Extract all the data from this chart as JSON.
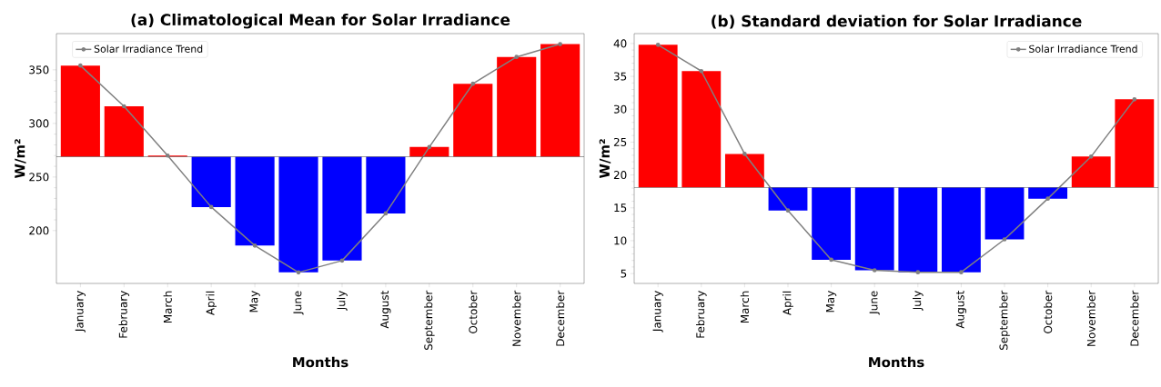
{
  "chart_data": [
    {
      "type": "bar",
      "title": "(a) Climatological Mean for Solar Irradiance",
      "xlabel": "Months",
      "ylabel": "W/m²",
      "categories": [
        "January",
        "February",
        "March",
        "April",
        "May",
        "June",
        "July",
        "August",
        "September",
        "October",
        "November",
        "December"
      ],
      "series": [
        {
          "base": [
            269,
            269,
            269,
            269,
            269,
            269,
            269,
            269,
            269,
            269,
            269,
            269
          ],
          "values": [
            85,
            47,
            1,
            -47,
            -83,
            -108,
            -97,
            -53,
            9,
            68,
            93,
            105
          ],
          "colors": [
            "#ff0000",
            "#ff0000",
            "#ff0000",
            "#0000ff",
            "#0000ff",
            "#0000ff",
            "#0000ff",
            "#0000ff",
            "#ff0000",
            "#ff0000",
            "#ff0000",
            "#ff0000"
          ]
        },
        {
          "type": "line",
          "name": "Solar Irradiance Trend",
          "color": "#808080",
          "marker": "circle",
          "values": [
            354,
            316,
            270,
            222,
            186,
            161,
            172,
            216,
            278,
            337,
            362,
            374
          ]
        }
      ],
      "ref_lines": [
        {
          "axis": "y",
          "value": 269,
          "color": "#4c4c4c"
        }
      ],
      "ylim": [
        150.7,
        383.8
      ],
      "yticks": [
        200,
        250,
        300,
        350
      ],
      "legend": "top left"
    },
    {
      "type": "bar",
      "title": "(b) Standard deviation for Solar Irradiance",
      "xlabel": "Months",
      "ylabel": "W/m²",
      "categories": [
        "January",
        "February",
        "March",
        "April",
        "May",
        "June",
        "July",
        "August",
        "September",
        "October",
        "November",
        "December"
      ],
      "series": [
        {
          "base": [
            18.1,
            18.1,
            18.1,
            18.1,
            18.1,
            18.1,
            18.1,
            18.1,
            18.1,
            18.1,
            18.1,
            18.1
          ],
          "values": [
            21.7,
            17.7,
            5.1,
            -3.5,
            -11.0,
            -12.6,
            -12.9,
            -12.9,
            -7.9,
            -1.7,
            4.7,
            13.4
          ],
          "colors": [
            "#ff0000",
            "#ff0000",
            "#ff0000",
            "#0000ff",
            "#0000ff",
            "#0000ff",
            "#0000ff",
            "#0000ff",
            "#0000ff",
            "#0000ff",
            "#ff0000",
            "#ff0000"
          ]
        },
        {
          "type": "line",
          "name": "Solar Irradiance Trend",
          "color": "#808080",
          "marker": "circle",
          "values": [
            39.8,
            35.8,
            23.2,
            14.6,
            7.1,
            5.5,
            5.2,
            5.2,
            10.2,
            16.4,
            22.8,
            31.5
          ]
        }
      ],
      "ref_lines": [
        {
          "axis": "y",
          "value": 18.1,
          "color": "#4c4c4c"
        }
      ],
      "ylim": [
        3.5,
        41.5
      ],
      "yticks": [
        5,
        10,
        15,
        20,
        25,
        30,
        35,
        40
      ],
      "legend": "top right"
    }
  ]
}
